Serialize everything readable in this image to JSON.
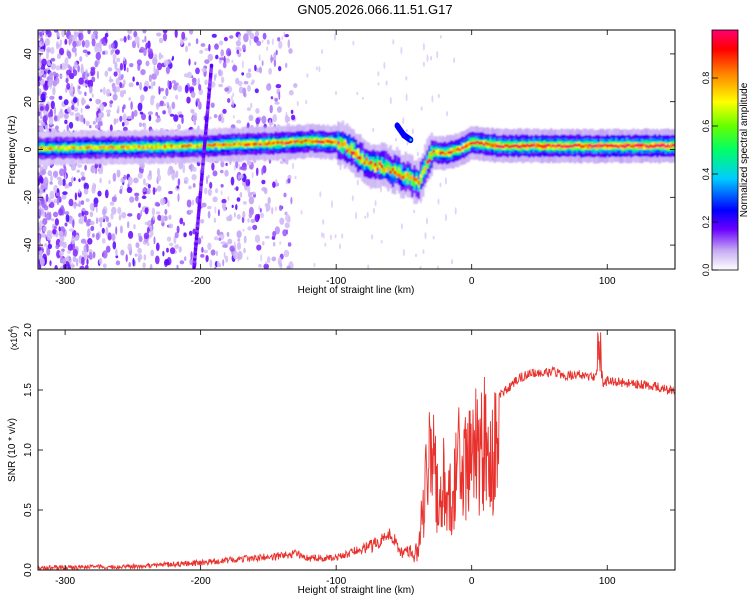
{
  "title": "GN05.2026.066.11.51.G17",
  "chart_data": [
    {
      "type": "heatmap",
      "xlabel": "Height of straight line (km)",
      "ylabel": "Frequency (Hz)",
      "xlim": [
        -320,
        150
      ],
      "ylim": [
        -50,
        50
      ],
      "xticks": [
        -300,
        -200,
        -100,
        0,
        100
      ],
      "yticks": [
        -40,
        -20,
        0,
        20,
        40
      ],
      "colorbar": {
        "label": "Normalized spectral amplitude",
        "range": [
          0,
          1
        ],
        "ticks": [
          "0.0",
          "0.2",
          "0.4",
          "0.6",
          "0.8"
        ],
        "tick_values": [
          0,
          0.2,
          0.4,
          0.6,
          0.8
        ],
        "colors": [
          "#ffffff",
          "#c3a6f2",
          "#6a00ff",
          "#0000ff",
          "#00ffff",
          "#00ff00",
          "#ffff00",
          "#ff8000",
          "#ff0000",
          "#ff0070"
        ]
      },
      "main_band": [
        [
          -320,
          0.5,
          0.5
        ],
        [
          -280,
          0.8,
          0.5
        ],
        [
          -250,
          1.0,
          0.6
        ],
        [
          -220,
          1.2,
          0.6
        ],
        [
          -200,
          1.5,
          0.6
        ],
        [
          -180,
          2.0,
          0.7
        ],
        [
          -150,
          2.5,
          0.75
        ],
        [
          -120,
          3.5,
          0.8
        ],
        [
          -100,
          3.0,
          0.8
        ],
        [
          -90,
          0.0,
          0.75
        ],
        [
          -80,
          -5.0,
          0.7
        ],
        [
          -70,
          -7.0,
          0.7
        ],
        [
          -60,
          -8.5,
          0.7
        ],
        [
          -50,
          -11.0,
          0.65
        ],
        [
          -40,
          -14.0,
          0.6
        ],
        [
          -30,
          -1.0,
          0.7
        ],
        [
          -20,
          -1.5,
          0.75
        ],
        [
          -10,
          0.0,
          0.8
        ],
        [
          0,
          3.0,
          0.85
        ],
        [
          20,
          1.5,
          0.9
        ],
        [
          60,
          1.5,
          0.92
        ],
        [
          100,
          1.5,
          0.95
        ],
        [
          150,
          1.5,
          0.95
        ]
      ],
      "features": [
        {
          "type": "diagonal_streak",
          "from": [
            -205,
            -50
          ],
          "to": [
            -192,
            35
          ]
        },
        {
          "type": "upper_branch",
          "points": [
            [
              -55,
              10
            ],
            [
              -50,
              6
            ],
            [
              -45,
              4
            ]
          ]
        }
      ]
    },
    {
      "type": "line",
      "xlabel": "Height of straight line (km)",
      "ylabel": "SNR (10 * v/v)",
      "multiplier": "(x10",
      "multiplier_exp": "4",
      "multiplier_close": ")",
      "xlim": [
        -320,
        150
      ],
      "ylim": [
        0,
        2.0
      ],
      "xticks": [
        -300,
        -200,
        -100,
        0,
        100
      ],
      "yticks": [
        "0.0",
        "0.5",
        "1.0",
        "1.5",
        "2.0"
      ],
      "ytick_values": [
        0,
        0.5,
        1.0,
        1.5,
        2.0
      ],
      "color": "#e8312c",
      "x": [
        -320,
        -250,
        -200,
        -170,
        -140,
        -130,
        -120,
        -100,
        -80,
        -70,
        -60,
        -50,
        -40,
        -35,
        -30,
        -25,
        -20,
        -15,
        -10,
        -5,
        0,
        5,
        10,
        15,
        20,
        25,
        30,
        35,
        40,
        50,
        60,
        70,
        80,
        90,
        93,
        95,
        97,
        100,
        110,
        120,
        130,
        140,
        150
      ],
      "y": [
        0.02,
        0.03,
        0.06,
        0.09,
        0.12,
        0.14,
        0.1,
        0.1,
        0.18,
        0.22,
        0.3,
        0.12,
        0.2,
        0.8,
        1.25,
        0.75,
        0.95,
        0.7,
        1.1,
        1.0,
        1.3,
        1.2,
        1.3,
        1.25,
        1.45,
        1.5,
        1.55,
        1.6,
        1.62,
        1.65,
        1.65,
        1.62,
        1.63,
        1.6,
        1.65,
        1.8,
        1.55,
        1.58,
        1.56,
        1.55,
        1.54,
        1.52,
        1.48
      ]
    }
  ]
}
